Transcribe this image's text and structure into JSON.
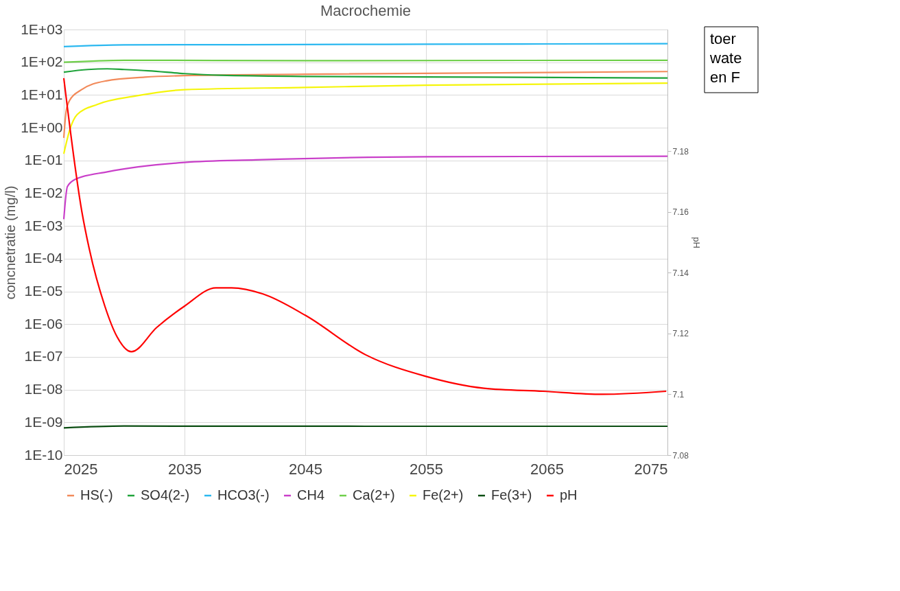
{
  "chart_data": {
    "type": "line",
    "title": "Macrochemie",
    "ylabel": "concnetratie (mg/l)",
    "y2label": "pH",
    "annotations": [
      "toer",
      "wate",
      "en F"
    ],
    "xlim": [
      2025,
      2075
    ],
    "xticks": [
      2025,
      2035,
      2045,
      2055,
      2065,
      2075
    ],
    "ylim": [
      1e-10,
      1000
    ],
    "log": true,
    "yticks": [
      {
        "value": 1000,
        "label": "1E+03"
      },
      {
        "value": 100,
        "label": "1E+02"
      },
      {
        "value": 10,
        "label": "1E+01"
      },
      {
        "value": 1,
        "label": "1E+00"
      },
      {
        "value": 0.1,
        "label": "1E-01"
      },
      {
        "value": 0.01,
        "label": "1E-02"
      },
      {
        "value": 0.001,
        "label": "1E-03"
      },
      {
        "value": 0.0001,
        "label": "1E-04"
      },
      {
        "value": 1e-05,
        "label": "1E-05"
      },
      {
        "value": 1e-06,
        "label": "1E-06"
      },
      {
        "value": 1e-07,
        "label": "1E-07"
      },
      {
        "value": 1e-08,
        "label": "1E-08"
      },
      {
        "value": 1e-09,
        "label": "1E-09"
      },
      {
        "value": 1e-10,
        "label": "1E-10"
      }
    ],
    "y2lim": [
      7.08,
      7.22
    ],
    "y2ticks": [
      7.08,
      7.1,
      7.12,
      7.14,
      7.16,
      7.18
    ],
    "grid": true,
    "legend": "bottom",
    "line_style": "solid",
    "series": [
      {
        "name": "HS(-)",
        "color": "#f28a5a",
        "x": [
          2025,
          2025.2,
          2025.5,
          2026.4,
          2028.5,
          2031.7,
          2035,
          2045,
          2075
        ],
        "values": [
          0.49,
          3.3,
          7,
          14,
          27,
          35,
          39,
          43,
          52
        ]
      },
      {
        "name": "SO4(2-)",
        "color": "#1fa33a",
        "x": [
          2025,
          2027,
          2028.6,
          2030,
          2032,
          2035,
          2038,
          2045,
          2060,
          2075
        ],
        "values": [
          50,
          60,
          63,
          60,
          55,
          45,
          40,
          37,
          35,
          33
        ]
      },
      {
        "name": "HCO3(-)",
        "color": "#2bb8f0",
        "x": [
          2025,
          2030,
          2040,
          2055,
          2075
        ],
        "values": [
          300,
          340,
          345,
          355,
          370
        ]
      },
      {
        "name": "CH4",
        "color": "#c93fc9",
        "x": [
          2025,
          2025.3,
          2026,
          2028.6,
          2035,
          2040.9,
          2055,
          2075
        ],
        "values": [
          0.0016,
          0.016,
          0.027,
          0.045,
          0.087,
          0.104,
          0.13,
          0.135
        ]
      },
      {
        "name": "Ca(2+)",
        "color": "#6fcf4a",
        "x": [
          2025,
          2030,
          2045,
          2075
        ],
        "values": [
          100,
          115,
          112,
          115
        ]
      },
      {
        "name": "Fe(2+)",
        "color": "#f5f50a",
        "x": [
          2025,
          2025.5,
          2026.1,
          2027.8,
          2031,
          2035,
          2045,
          2055,
          2075
        ],
        "values": [
          0.16,
          0.87,
          2.5,
          5.2,
          9.4,
          14.5,
          17,
          20,
          23
        ]
      },
      {
        "name": "Fe(3+)",
        "color": "#0b4d12",
        "x": [
          2025,
          2030,
          2050,
          2075
        ],
        "values": [
          6.8e-10,
          7.7e-10,
          7.6e-10,
          7.6e-10
        ]
      },
      {
        "name": "pH",
        "color": "#ff0000",
        "axis": "y2",
        "x": [
          2025,
          2026.5,
          2027.1,
          2028.4,
          2029.4,
          2030.6,
          2032.7,
          2035,
          2037.6,
          2038.9,
          2041.5,
          2045,
          2050,
          2054.9,
          2059.8,
          2064.7,
          2069.6,
          2074.9
        ],
        "values": [
          7.204,
          7.16,
          7.148,
          7.129,
          7.119,
          7.114,
          7.122,
          7.129,
          7.135,
          7.135,
          7.133,
          7.126,
          7.113,
          7.106,
          7.102,
          7.101,
          7.1,
          7.101
        ]
      }
    ]
  }
}
